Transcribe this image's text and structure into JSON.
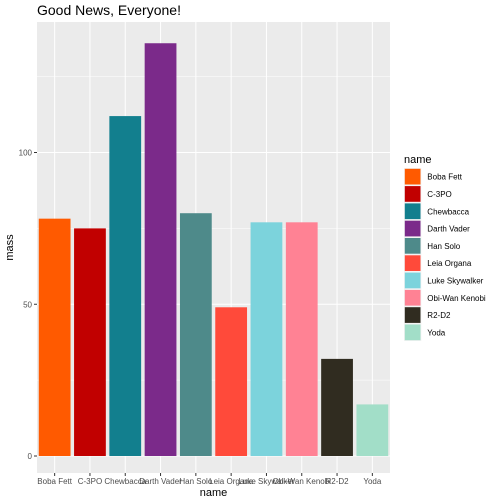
{
  "chart_data": {
    "type": "bar",
    "title": "Good News, Everyone!",
    "xlabel": "name",
    "ylabel": "mass",
    "categories": [
      "Boba Fett",
      "C-3PO",
      "Chewbacca",
      "Darth Vader",
      "Han Solo",
      "Leia Organa",
      "Luke Skywalker",
      "Obi-Wan Kenobi",
      "R2-D2",
      "Yoda"
    ],
    "values": [
      78.2,
      75,
      112,
      136,
      80,
      49,
      77,
      77,
      32,
      17
    ],
    "colors": [
      "#FF5A00",
      "#C10000",
      "#127F8E",
      "#7B2A8A",
      "#4E8A8A",
      "#FF4A3A",
      "#7CD3DC",
      "#FF8294",
      "#302C20",
      "#A2DEC8"
    ],
    "ylim": [
      -5.6,
      143
    ],
    "yticks": [
      0,
      50,
      100
    ],
    "grid": true,
    "legend": {
      "title": "name",
      "position": "right",
      "entries": [
        "Boba Fett",
        "C-3PO",
        "Chewbacca",
        "Darth Vader",
        "Han Solo",
        "Leia Organa",
        "Luke Skywalker",
        "Obi-Wan Kenobi",
        "R2-D2",
        "Yoda"
      ]
    }
  }
}
